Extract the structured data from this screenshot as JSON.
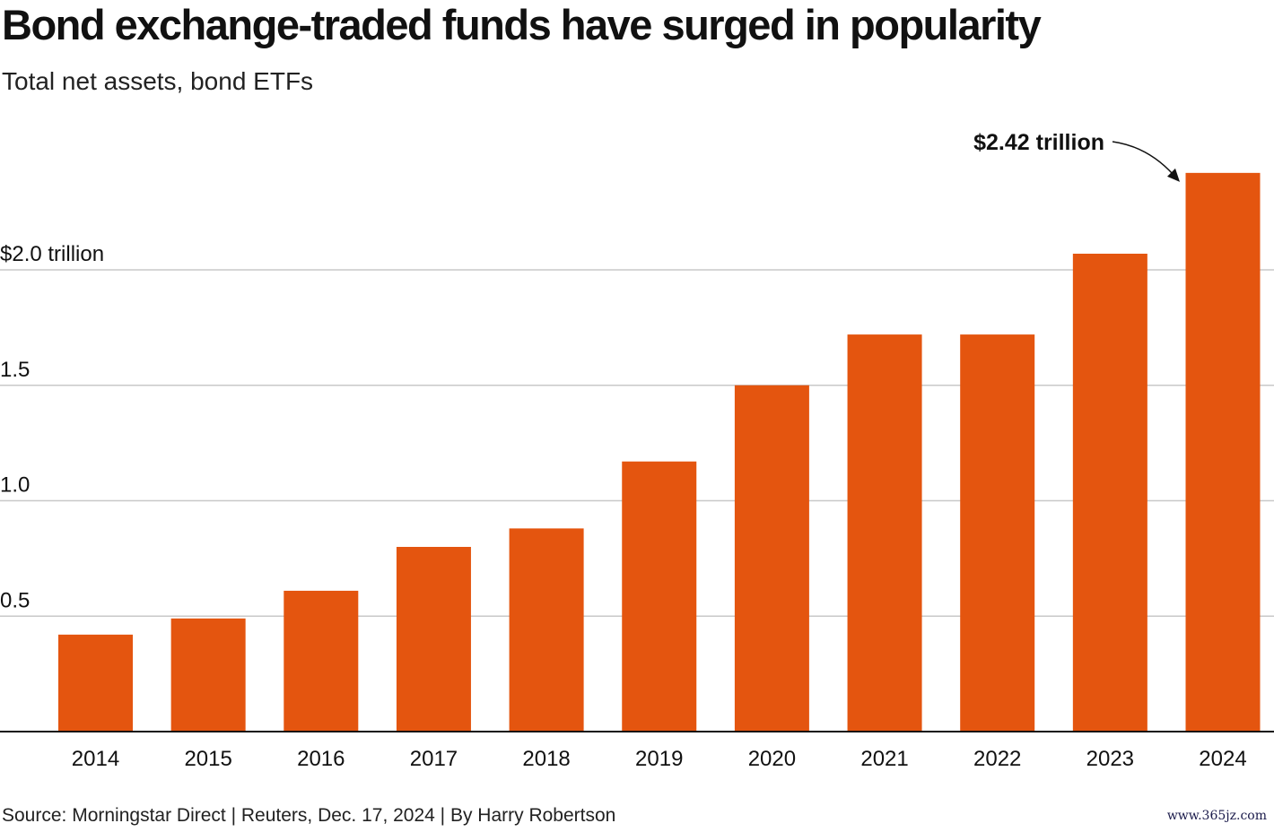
{
  "title": "Bond exchange-traded funds have surged in popularity",
  "subtitle": "Total net assets, bond ETFs",
  "source": "Source: Morningstar Direct | Reuters, Dec. 17, 2024 | By Harry Robertson",
  "watermark": "www.365jz.com",
  "colors": {
    "bar": "#E4550F",
    "grid": "#c8c8c8",
    "axis": "#111111"
  },
  "chart_data": {
    "type": "bar",
    "categories": [
      "2014",
      "2015",
      "2016",
      "2017",
      "2018",
      "2019",
      "2020",
      "2021",
      "2022",
      "2023",
      "2024"
    ],
    "values": [
      0.42,
      0.49,
      0.61,
      0.8,
      0.88,
      1.17,
      1.5,
      1.72,
      1.72,
      2.07,
      2.42
    ],
    "ylim": [
      0,
      2.42
    ],
    "yticks": [
      {
        "value": 0.5,
        "label": "0.5"
      },
      {
        "value": 1.0,
        "label": "1.0"
      },
      {
        "value": 1.5,
        "label": "1.5"
      },
      {
        "value": 2.0,
        "label": "$2.0 trillion"
      }
    ],
    "grid": true,
    "annotation": {
      "text": "$2.42 trillion",
      "category": "2024"
    }
  }
}
